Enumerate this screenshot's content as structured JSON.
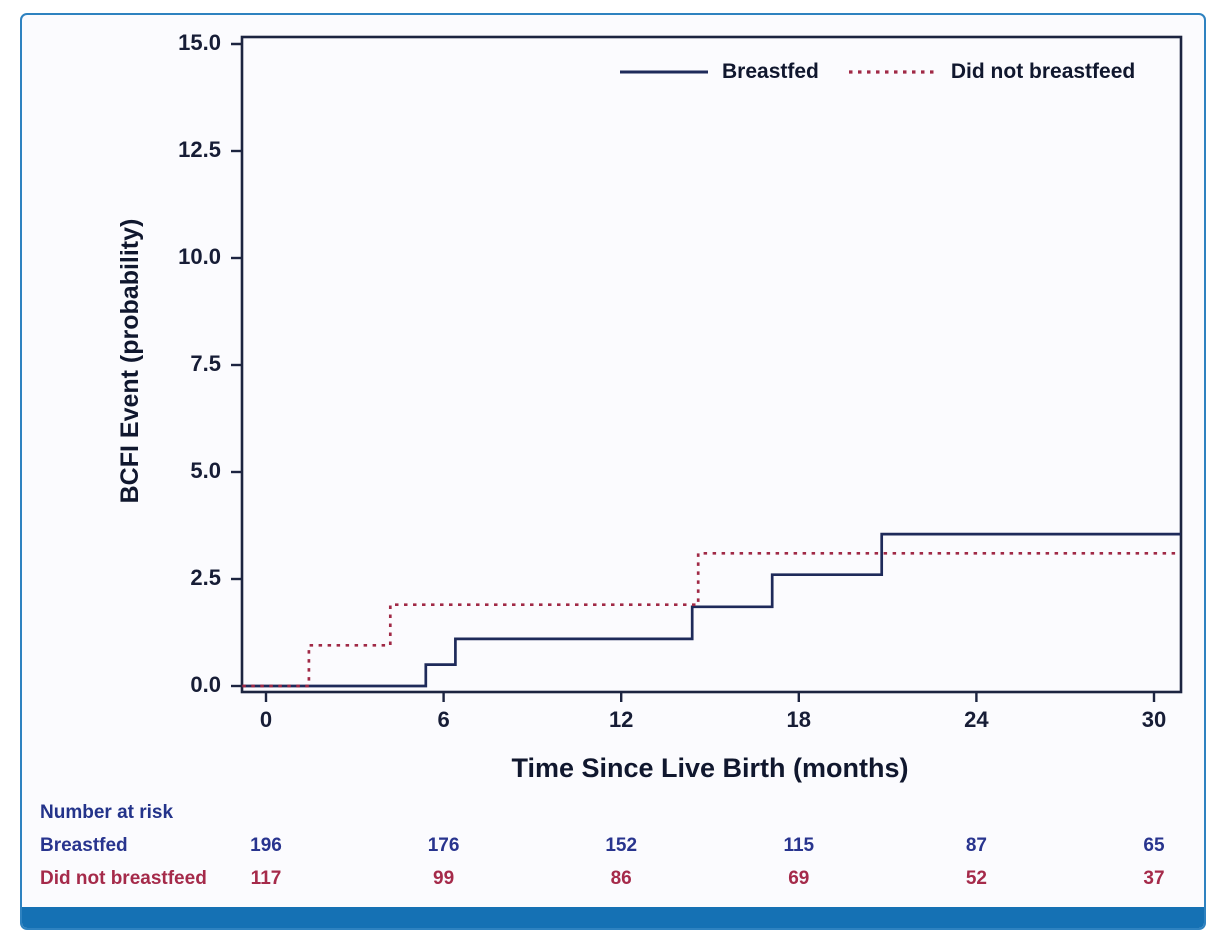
{
  "colors": {
    "frame_border": "#2e82c0",
    "bottom_bar": "#1571b4",
    "plot_background": "#fbfbfe",
    "axis_line": "#1c2440",
    "axis_text": "#171d36",
    "breastfed_line": "#1e2a5a",
    "did_not_breastfeed_line": "#a02946",
    "risk_breastfed_text": "#28348e",
    "risk_did_not_breastfeed_text": "#a52a4a"
  },
  "chart_data": {
    "type": "line",
    "subtype": "step-cumulative-incidence",
    "title": "",
    "xlabel": "Time Since Live Birth (months)",
    "ylabel": "BCFI Event (probability)",
    "xlim": [
      -0.8,
      30.9
    ],
    "ylim": [
      0,
      15
    ],
    "x_ticks": [
      0,
      6,
      12,
      18,
      24,
      30
    ],
    "y_ticks": [
      "0.0",
      "2.5",
      "5.0",
      "7.5",
      "10.0",
      "12.5",
      "15.0"
    ],
    "grid": false,
    "legend_position": "top-right-inside",
    "series": [
      {
        "name": "Breastfed",
        "style": "solid",
        "color": "#1e2a5a",
        "points": [
          [
            -0.8,
            0
          ],
          [
            5.4,
            0
          ],
          [
            5.4,
            0.5
          ],
          [
            6.4,
            0.5
          ],
          [
            6.4,
            1.1
          ],
          [
            14.4,
            1.1
          ],
          [
            14.4,
            1.85
          ],
          [
            17.1,
            1.85
          ],
          [
            17.1,
            2.6
          ],
          [
            20.8,
            2.6
          ],
          [
            20.8,
            3.55
          ],
          [
            30.9,
            3.55
          ]
        ]
      },
      {
        "name": "Did not breastfeed",
        "style": "dotted",
        "color": "#a02946",
        "points": [
          [
            -0.8,
            0
          ],
          [
            1.45,
            0
          ],
          [
            1.45,
            0.95
          ],
          [
            4.2,
            0.95
          ],
          [
            4.2,
            1.9
          ],
          [
            14.6,
            1.9
          ],
          [
            14.6,
            3.1
          ],
          [
            30.9,
            3.1
          ]
        ]
      }
    ],
    "risk_table": {
      "title": "Number at risk",
      "time_points": [
        0,
        6,
        12,
        18,
        24,
        30
      ],
      "rows": [
        {
          "label": "Breastfed",
          "color": "#28348e",
          "counts": [
            196,
            176,
            152,
            115,
            87,
            65
          ]
        },
        {
          "label": "Did not breastfeed",
          "color": "#a52a4a",
          "counts": [
            117,
            99,
            86,
            69,
            52,
            37
          ]
        }
      ]
    }
  }
}
